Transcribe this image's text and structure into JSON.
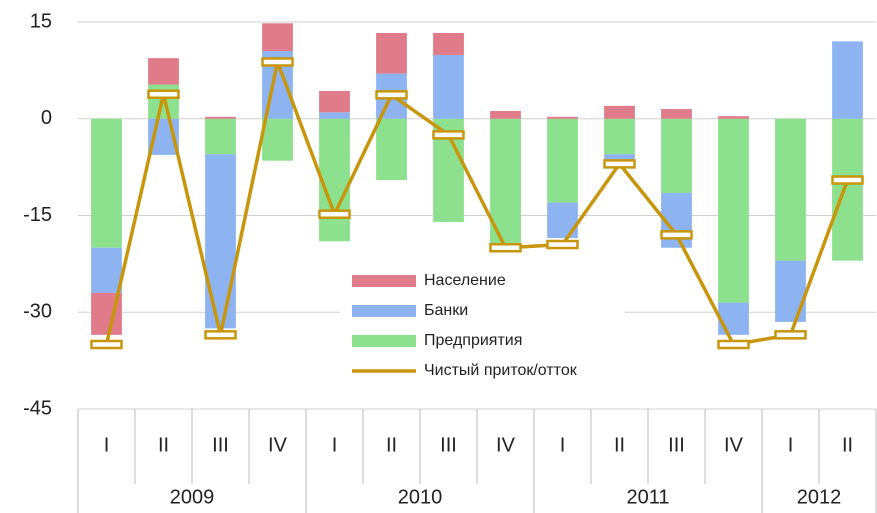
{
  "chart_data": {
    "type": "bar",
    "stacked": true,
    "year_groups": [
      {
        "label": "2009",
        "quarters": [
          "I",
          "II",
          "III",
          "IV"
        ]
      },
      {
        "label": "2010",
        "quarters": [
          "I",
          "II",
          "III",
          "IV"
        ]
      },
      {
        "label": "2011",
        "quarters": [
          "I",
          "II",
          "III",
          "IV"
        ]
      },
      {
        "label": "2012",
        "quarters": [
          "I",
          "II"
        ]
      }
    ],
    "series": [
      {
        "name": "Население",
        "color": "#e07b8a",
        "values": [
          -6.5,
          4.1,
          0.3,
          4.3,
          3.3,
          6.3,
          3.4,
          1.2,
          0.3,
          2,
          1.5,
          0.4,
          0,
          0
        ]
      },
      {
        "name": "Банки",
        "color": "#8db4f0",
        "values": [
          -7,
          -5.6,
          -27,
          10.5,
          1,
          7,
          9.9,
          -0.5,
          -5.5,
          -1.5,
          -8.5,
          -5,
          -9.5,
          12
        ]
      },
      {
        "name": "Предприятия",
        "color": "#8de08d",
        "values": [
          -20,
          5.3,
          -5.5,
          -6.5,
          -19,
          -9.5,
          -16,
          -20,
          -13,
          -5.5,
          -11.5,
          -28.5,
          -22,
          -22
        ]
      },
      {
        "name": "Чистый приток/отток",
        "color": "#c8960c",
        "type": "line",
        "values": [
          -35,
          3.8,
          -33.5,
          8.8,
          -14.8,
          3.7,
          -2.5,
          -20,
          -19.5,
          -7,
          -18,
          -35,
          -33.5,
          -9.5
        ]
      }
    ],
    "ylim": [
      -45,
      15
    ],
    "yticks": [
      -45,
      -30,
      -15,
      0,
      15
    ],
    "grid": true,
    "legend": "center"
  }
}
